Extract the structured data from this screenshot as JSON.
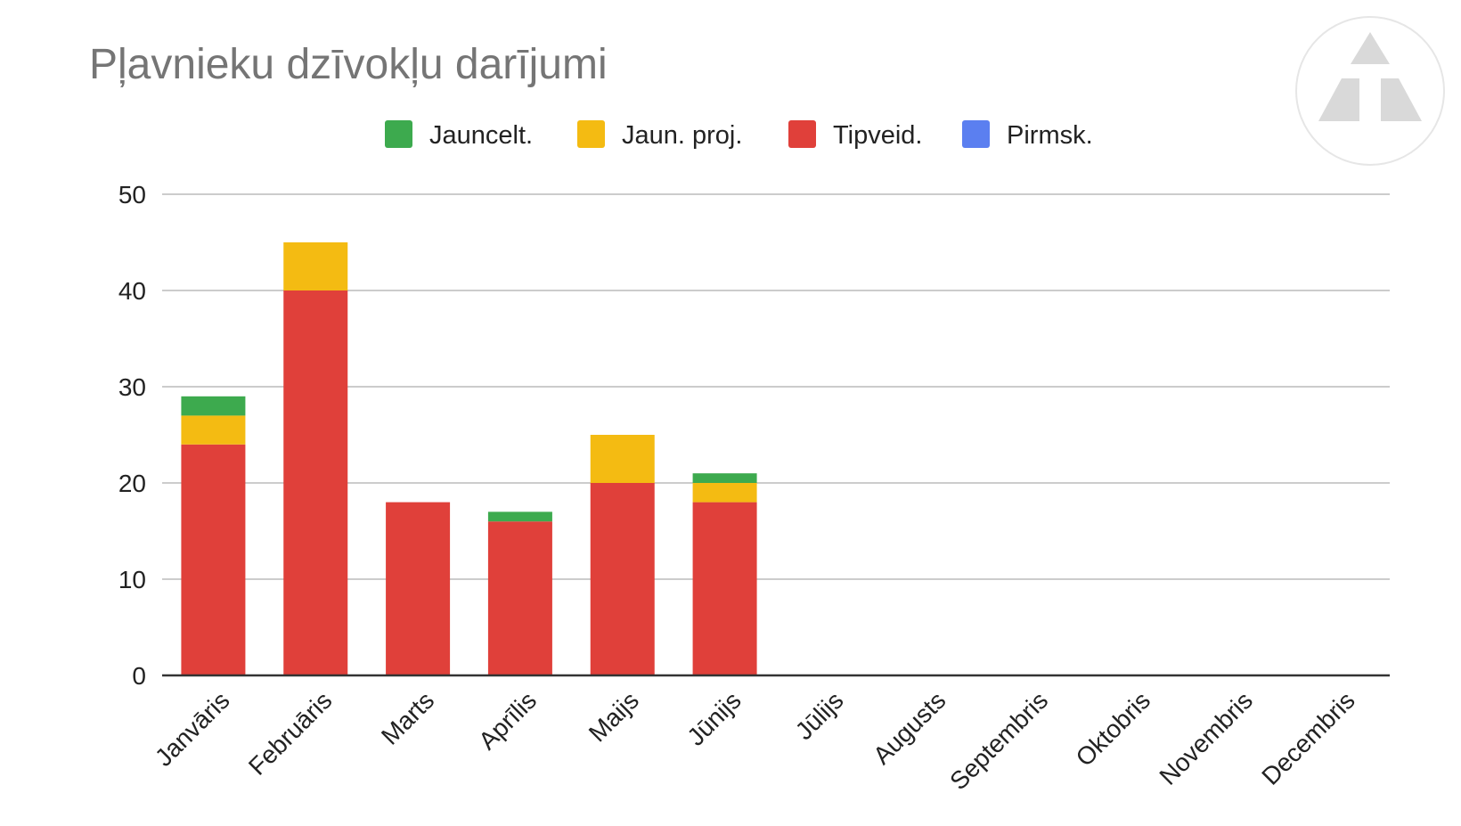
{
  "chart_data": {
    "type": "bar",
    "stacked": true,
    "title": "Pļavnieku dzīvokļu darījumi",
    "xlabel": "",
    "ylabel": "",
    "ylim": [
      0,
      50
    ],
    "yticks": [
      0,
      10,
      20,
      30,
      40,
      50
    ],
    "grid": true,
    "legend_position": "top",
    "categories": [
      "Janvāris",
      "Februāris",
      "Marts",
      "Aprīlis",
      "Maijs",
      "Jūnijs",
      "Jūlijs",
      "Augusts",
      "Septembris",
      "Oktobris",
      "Novembris",
      "Decembris"
    ],
    "series": [
      {
        "name": "Pirmsk.",
        "color": "#5b7ff0",
        "values": [
          0,
          0,
          0,
          0,
          0,
          0,
          0,
          0,
          0,
          0,
          0,
          0
        ]
      },
      {
        "name": "Tipveid.",
        "color": "#e0403a",
        "values": [
          24,
          40,
          18,
          16,
          20,
          18,
          0,
          0,
          0,
          0,
          0,
          0
        ]
      },
      {
        "name": "Jaun. proj.",
        "color": "#f4bb12",
        "values": [
          3,
          5,
          0,
          0,
          5,
          2,
          0,
          0,
          0,
          0,
          0,
          0
        ]
      },
      {
        "name": "Jauncelt.",
        "color": "#3daa4e",
        "values": [
          2,
          0,
          0,
          1,
          0,
          1,
          0,
          0,
          0,
          0,
          0,
          0
        ]
      }
    ],
    "legend_order": [
      "Jauncelt.",
      "Jaun. proj.",
      "Tipveid.",
      "Pirmsk."
    ]
  },
  "watermark": {
    "icon": "triangle-logo-icon"
  }
}
